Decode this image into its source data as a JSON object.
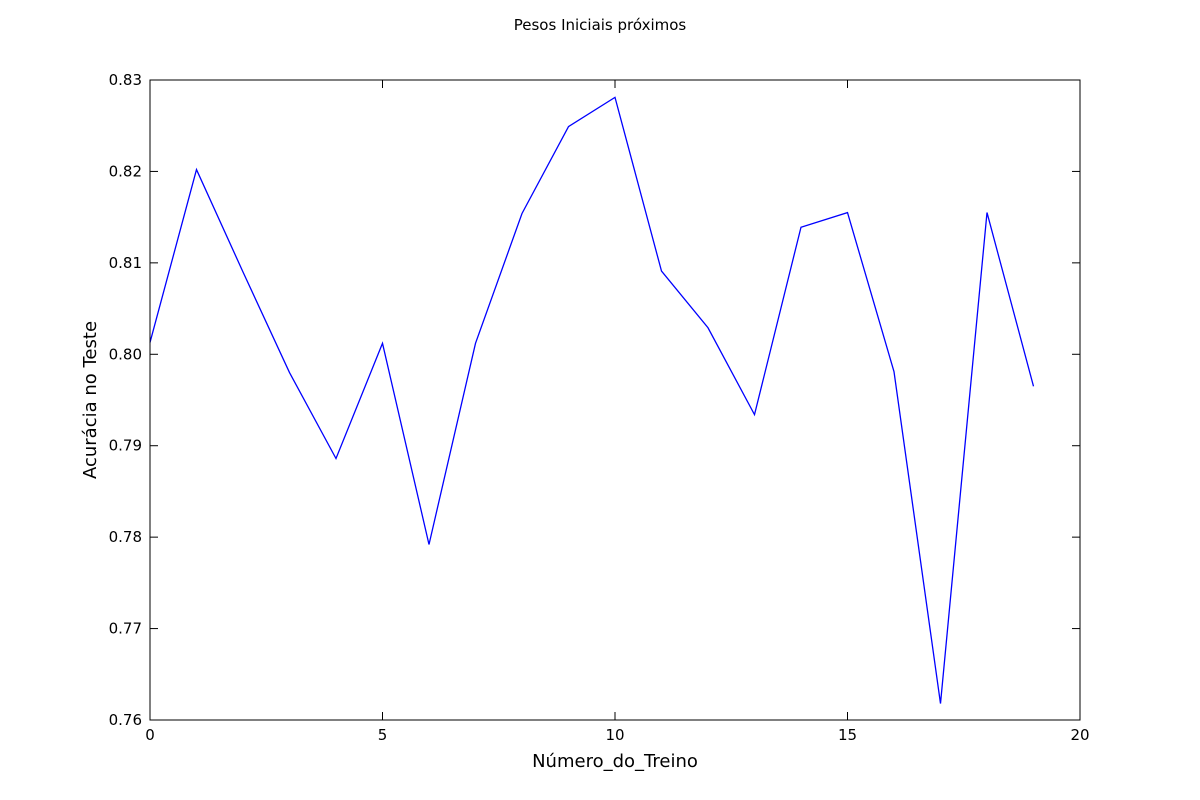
{
  "chart_data": {
    "type": "line",
    "title": "Pesos Iniciais próximos",
    "xlabel": "Número_do_Treino",
    "ylabel": "Acurácia no Teste",
    "xlim": [
      0,
      20
    ],
    "ylim": [
      0.76,
      0.83
    ],
    "xticks": [
      0,
      5,
      10,
      15,
      20
    ],
    "xtick_labels": [
      "0",
      "5",
      "10",
      "15",
      "20"
    ],
    "yticks": [
      0.76,
      0.77,
      0.78,
      0.79,
      0.8,
      0.81,
      0.82,
      0.83
    ],
    "ytick_labels": [
      "0.76",
      "0.77",
      "0.78",
      "0.79",
      "0.80",
      "0.81",
      "0.82",
      "0.83"
    ],
    "grid": false,
    "series": [
      {
        "color": "#0000ff",
        "x": [
          0,
          1,
          2,
          3,
          4,
          5,
          6,
          7,
          8,
          9,
          10,
          11,
          12,
          13,
          14,
          15,
          16,
          17,
          18,
          19
        ],
        "y": [
          0.8013,
          0.8202,
          0.809,
          0.798,
          0.7886,
          0.8012,
          0.7792,
          0.8012,
          0.8154,
          0.8249,
          0.8281,
          0.8091,
          0.8029,
          0.7934,
          0.8139,
          0.8155,
          0.7981,
          0.7618,
          0.8155,
          0.7965
        ]
      }
    ]
  }
}
